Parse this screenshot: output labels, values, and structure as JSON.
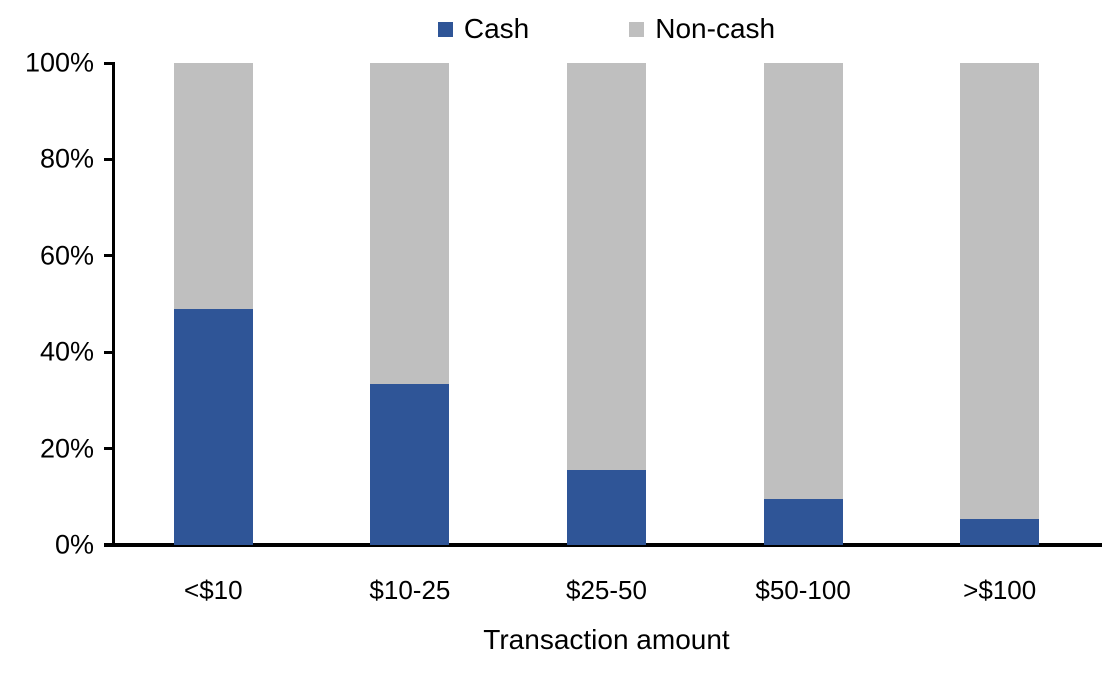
{
  "chart_data": {
    "type": "bar",
    "stacked": true,
    "percent_stacked": true,
    "title": "",
    "xlabel": "Transaction amount",
    "ylabel": "",
    "categories": [
      "<$10",
      "$10-25",
      "$25-50",
      "$50-100",
      ">$100"
    ],
    "series": [
      {
        "name": "Cash",
        "color": "#2F5597",
        "values": [
          49,
          33.5,
          15.5,
          9.5,
          5.5
        ]
      },
      {
        "name": "Non-cash",
        "color": "#BFBFBF",
        "values": [
          51,
          66.5,
          84.5,
          90.5,
          94.5
        ]
      }
    ],
    "ylim": [
      0,
      100
    ],
    "ytick_values": [
      0,
      20,
      40,
      60,
      80,
      100
    ],
    "yticks": [
      "0%",
      "20%",
      "40%",
      "60%",
      "80%",
      "100%"
    ],
    "grid": false,
    "legend_position": "top"
  },
  "colors": {
    "axis": "#000000",
    "text": "#000000",
    "background": "#FFFFFF",
    "baseline_accent": "#D9D9D9"
  }
}
